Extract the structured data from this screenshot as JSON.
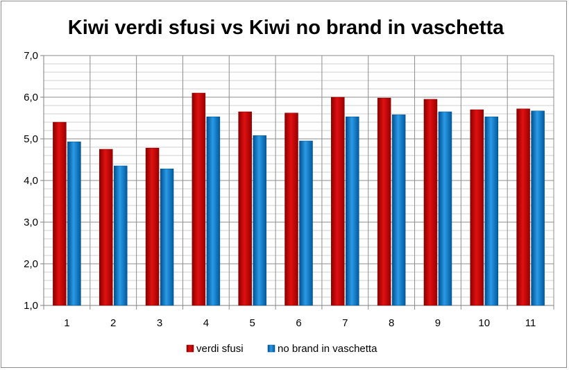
{
  "chart_data": {
    "type": "bar",
    "title": "Kiwi verdi sfusi vs Kiwi no brand in vaschetta",
    "xlabel": "",
    "ylabel": "",
    "categories": [
      "1",
      "2",
      "3",
      "4",
      "5",
      "6",
      "7",
      "8",
      "9",
      "10",
      "11"
    ],
    "series": [
      {
        "name": "verdi sfusi",
        "color": "#c00000",
        "values": [
          5.4,
          4.75,
          4.78,
          6.1,
          5.65,
          5.62,
          6.0,
          5.98,
          5.95,
          5.7,
          5.72
        ]
      },
      {
        "name": "no brand in vaschetta",
        "color": "#0070c0",
        "values": [
          4.93,
          4.35,
          4.28,
          5.53,
          5.08,
          4.95,
          5.53,
          5.58,
          5.65,
          5.53,
          5.67
        ]
      }
    ],
    "ylim": [
      1.0,
      7.0
    ],
    "yticks": [
      "1,0",
      "2,0",
      "3,0",
      "4,0",
      "5,0",
      "6,0",
      "7,0"
    ],
    "grid": true,
    "legend_position": "bottom"
  }
}
